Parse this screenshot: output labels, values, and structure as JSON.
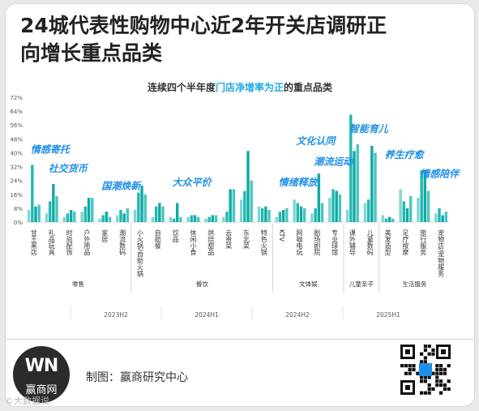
{
  "page": {
    "title": "24城代表性购物中心近2年开关店调研正向增长重点品类",
    "credit": "制图：赢商研究中心",
    "logo_text": "WN",
    "logo_sub": "赢商网",
    "watermark": "©大数据说"
  },
  "chart_data": {
    "type": "bar",
    "title_parts": [
      "连续四个半年度",
      "门店净增率为正",
      "的重点品类"
    ],
    "ylim": [
      0,
      72
    ],
    "yticks": [
      "0%",
      "8%",
      "16%",
      "24%",
      "32%",
      "40%",
      "48%",
      "56%",
      "64%",
      "72%"
    ],
    "period_labels": [
      "2023H2",
      "2024H1",
      "2024H2",
      "2025H1"
    ],
    "series": [
      {
        "name": "2023H2",
        "color": "#7fd6d2"
      },
      {
        "name": "2024H1",
        "color": "#22b7b2"
      },
      {
        "name": "2024H2",
        "color": "#10a9a3"
      },
      {
        "name": "2025H1",
        "color": "#48c6c1"
      }
    ],
    "categories": [
      {
        "label": "甘王黑店",
        "values": [
          7,
          33,
          9,
          10
        ]
      },
      {
        "label": "礼品玩具",
        "values": [
          5,
          12,
          22,
          15
        ]
      },
      {
        "label": "时尚配饰",
        "values": [
          3,
          5,
          7,
          6
        ]
      },
      {
        "label": "户外用品",
        "values": [
          6,
          9,
          14,
          14
        ]
      },
      {
        "label": "家居",
        "values": [
          2,
          4,
          6,
          3
        ]
      },
      {
        "label": "潮流数码",
        "values": [
          4,
          7,
          5,
          8
        ]
      },
      {
        "label": "小火锅/自助火锅",
        "values": [
          7,
          17,
          21,
          16
        ]
      },
      {
        "label": "自助餐",
        "values": [
          3,
          9,
          11,
          9
        ]
      },
      {
        "label": "饮品",
        "values": [
          3,
          2,
          11,
          3
        ]
      },
      {
        "label": "休闲小食",
        "values": [
          3,
          4,
          4,
          3
        ]
      },
      {
        "label": "烘焙甜品",
        "values": [
          2,
          3,
          4,
          4
        ]
      },
      {
        "label": "云贵菜",
        "values": [
          3,
          6,
          19,
          19
        ]
      },
      {
        "label": "东北菜",
        "values": [
          13,
          18,
          41,
          24
        ]
      },
      {
        "label": "特色火锅",
        "values": [
          9,
          8,
          9,
          7
        ]
      },
      {
        "label": "KTV",
        "values": [
          3,
          6,
          7,
          8
        ]
      },
      {
        "label": "网咖电玩",
        "values": [
          13,
          11,
          9,
          8
        ]
      },
      {
        "label": "剧场剧院",
        "values": [
          5,
          8,
          28,
          11
        ]
      },
      {
        "label": "专业球馆",
        "values": [
          14,
          19,
          18,
          16
        ]
      },
      {
        "label": "课外辅导",
        "values": [
          7,
          62,
          41,
          45
        ]
      },
      {
        "label": "儿童数码",
        "values": [
          11,
          13,
          44,
          40
        ]
      },
      {
        "label": "美发造型",
        "values": [
          4,
          2,
          3,
          2
        ]
      },
      {
        "label": "足疗按摩",
        "values": [
          19,
          12,
          8,
          15
        ]
      },
      {
        "label": "旅行服务",
        "values": [
          14,
          30,
          30,
          18
        ]
      },
      {
        "label": "宠物店/宠物服务",
        "values": [
          5,
          8,
          4,
          6
        ]
      }
    ],
    "groups": [
      {
        "label": "零售",
        "count": 6
      },
      {
        "label": "餐饮",
        "count": 8
      },
      {
        "label": "文体娱",
        "count": 4
      },
      {
        "label": "儿童亲子",
        "count": 2
      },
      {
        "label": "生活服务",
        "count": 4
      }
    ],
    "annotations": [
      {
        "text": "情感寄托",
        "category_index": 0,
        "value": 40
      },
      {
        "text": "社交货币",
        "category_index": 1,
        "value": 29
      },
      {
        "text": "国潮焕新",
        "category_index": 4,
        "value": 19
      },
      {
        "text": "大众平价",
        "category_index": 8,
        "value": 21
      },
      {
        "text": "情绪释放",
        "category_index": 14,
        "value": 21
      },
      {
        "text": "文化认同",
        "category_index": 15,
        "value": 45
      },
      {
        "text": "潮流运动",
        "category_index": 16,
        "value": 33
      },
      {
        "text": "智能育儿",
        "category_index": 18,
        "value": 52
      },
      {
        "text": "养生疗愈",
        "category_index": 20,
        "value": 37
      },
      {
        "text": "情感陪伴",
        "category_index": 22,
        "value": 26
      }
    ],
    "grid": false,
    "legend": "none"
  }
}
